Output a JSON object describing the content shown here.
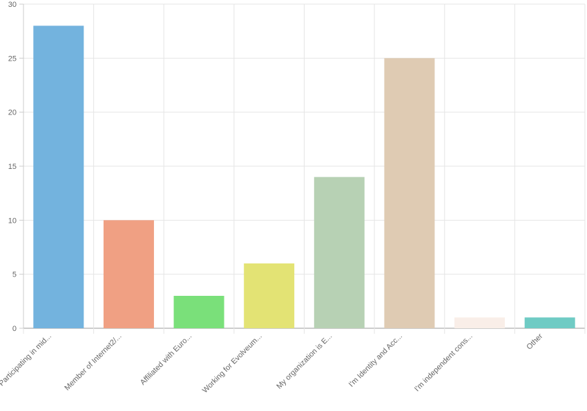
{
  "chart_data": {
    "type": "bar",
    "title": "",
    "xlabel": "",
    "ylabel": "",
    "categories": [
      "Participating in mid...",
      "Member of Internet2/...",
      "Affiliated with Euro...",
      "Working for Evolveum...",
      "My organization is E...",
      "I'm Identity and Acc...",
      "I'm independent cons...",
      "Other"
    ],
    "values": [
      28,
      10,
      3,
      6,
      14,
      25,
      1,
      1
    ],
    "colors": [
      "#73b3de",
      "#f0a083",
      "#7ae07a",
      "#e3e374",
      "#b7d1b4",
      "#dfcbb3",
      "#f9eee8",
      "#6fcbc4"
    ],
    "ylim": [
      0,
      30
    ],
    "yticks": [
      0,
      5,
      10,
      15,
      20,
      25,
      30
    ],
    "grid": true,
    "legend": "none"
  }
}
